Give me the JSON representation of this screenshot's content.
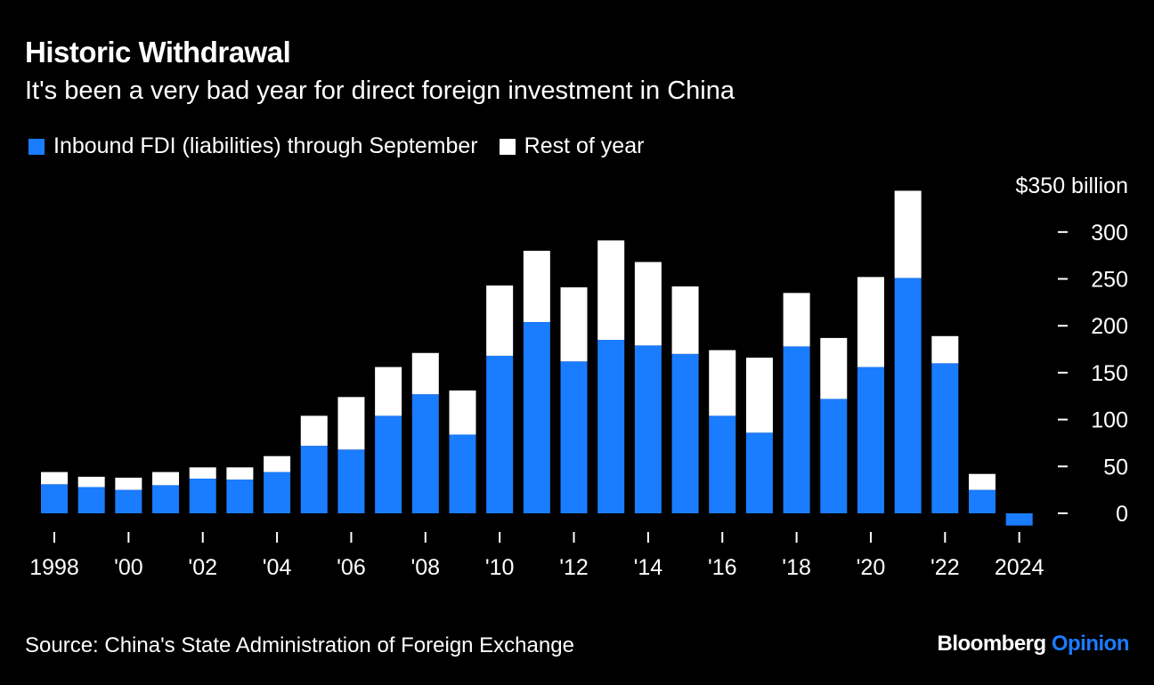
{
  "header": {
    "title": "Historic Withdrawal",
    "subtitle": "It's been a very bad year for direct foreign investment in China"
  },
  "legend": [
    {
      "label": "Inbound FDI (liabilities) through September",
      "color": "#1a7cff"
    },
    {
      "label": "Rest of year",
      "color": "#ffffff"
    }
  ],
  "footer": {
    "source": "Source: China's State Administration of Foreign Exchange",
    "brand_main": "Bloomberg",
    "brand_accent": "Opinion"
  },
  "chart_data": {
    "type": "bar",
    "stacked": true,
    "y_axis_position": "right",
    "ylim": [
      -15,
      350
    ],
    "y_ticks": [
      0,
      50,
      100,
      150,
      200,
      250,
      300,
      350
    ],
    "y_top_label": "$350 billion",
    "categories": [
      "1998",
      "1999",
      "2000",
      "2001",
      "2002",
      "2003",
      "2004",
      "2005",
      "2006",
      "2007",
      "2008",
      "2009",
      "2010",
      "2011",
      "2012",
      "2013",
      "2014",
      "2015",
      "2016",
      "2017",
      "2018",
      "2019",
      "2020",
      "2021",
      "2022",
      "2023",
      "2024"
    ],
    "x_tick_labels": [
      "1998",
      "",
      "'00",
      "",
      "'02",
      "",
      "'04",
      "",
      "'06",
      "",
      "'08",
      "",
      "'10",
      "",
      "'12",
      "",
      "'14",
      "",
      "'16",
      "",
      "'18",
      "",
      "'20",
      "",
      "'22",
      "",
      "2024"
    ],
    "series": [
      {
        "name": "Inbound FDI (liabilities) through September",
        "color": "#1a7cff",
        "values": [
          31,
          28,
          25,
          30,
          37,
          36,
          44,
          72,
          68,
          104,
          127,
          84,
          168,
          204,
          162,
          185,
          179,
          170,
          104,
          86,
          178,
          122,
          156,
          251,
          160,
          25,
          -13
        ]
      },
      {
        "name": "Rest of year",
        "color": "#ffffff",
        "values": [
          13,
          11,
          13,
          14,
          12,
          13,
          17,
          32,
          56,
          52,
          44,
          47,
          75,
          76,
          79,
          106,
          89,
          72,
          70,
          80,
          57,
          65,
          96,
          93,
          29,
          17,
          0
        ]
      }
    ]
  }
}
